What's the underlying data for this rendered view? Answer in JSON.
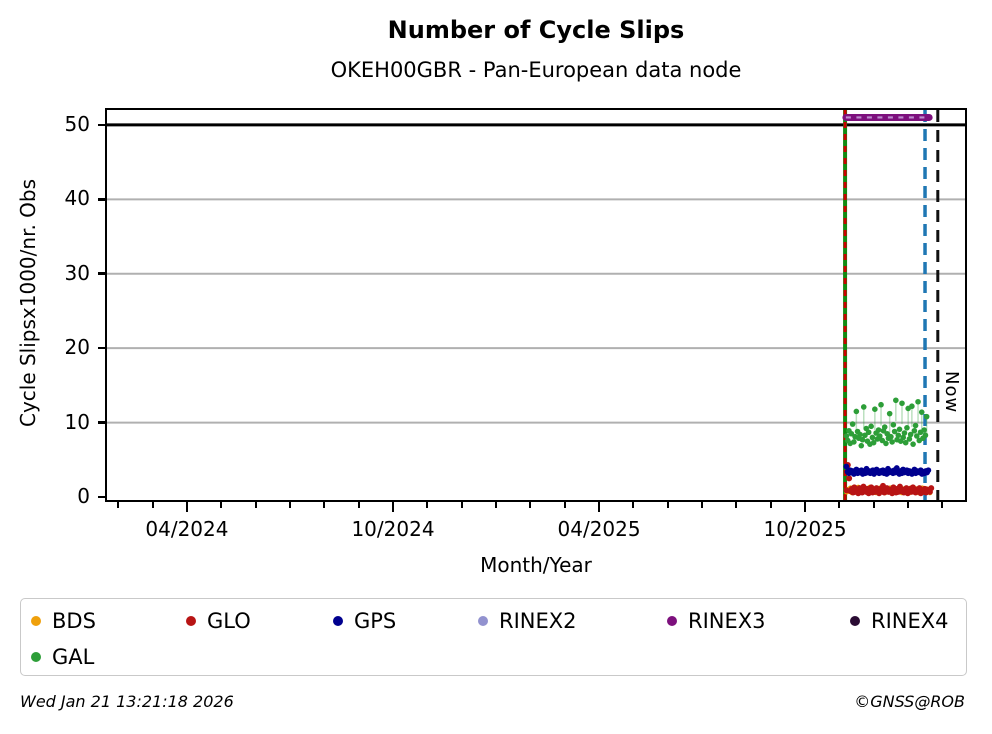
{
  "footer": {
    "timestamp": "Wed Jan 21 13:21:18 2026",
    "credit": "©GNSS@ROB"
  },
  "legend": {
    "items": [
      {
        "label": "BDS",
        "color": "#efa00b"
      },
      {
        "label": "GLO",
        "color": "#b81414"
      },
      {
        "label": "GPS",
        "color": "#00008f"
      },
      {
        "label": "RINEX2",
        "color": "#9292cf"
      },
      {
        "label": "RINEX3",
        "color": "#7d107d"
      },
      {
        "label": "RINEX4",
        "color": "#2a0b33"
      },
      {
        "label": "GAL",
        "color": "#2d9e38"
      }
    ]
  },
  "chart_data": {
    "type": "scatter",
    "title": "Number of Cycle Slips",
    "subtitle": "OKEH00GBR - Pan-European data node",
    "xlabel": "Month/Year",
    "ylabel": "Cycle Slipsx1000/nr. Obs",
    "now_label": "Now",
    "xlim": [
      2024.056,
      2026.138
    ],
    "ylim": [
      -0.4,
      52.0
    ],
    "x_ticks": [
      {
        "v": 2024.25,
        "label": "04/2024"
      },
      {
        "v": 2024.75,
        "label": "10/2024"
      },
      {
        "v": 2025.25,
        "label": "04/2025"
      },
      {
        "v": 2025.75,
        "label": "10/2025"
      }
    ],
    "x_minor_ticks": [
      2024.0833,
      2024.1667,
      2024.3333,
      2024.4167,
      2024.5,
      2024.5833,
      2024.6667,
      2024.8333,
      2024.9167,
      2025.0,
      2025.0833,
      2025.1667,
      2025.3333,
      2025.4167,
      2025.5,
      2025.5833,
      2025.6667,
      2025.8333,
      2025.9167,
      2026.0,
      2026.0833
    ],
    "y_ticks": [
      0,
      10,
      20,
      30,
      40,
      50
    ],
    "gridlines": [
      {
        "v": 10,
        "color": "#b0b0b0",
        "width": 2
      },
      {
        "v": 20,
        "color": "#b0b0b0",
        "width": 2
      },
      {
        "v": 30,
        "color": "#b0b0b0",
        "width": 2
      },
      {
        "v": 40,
        "color": "#b0b0b0",
        "width": 2
      },
      {
        "v": 50,
        "color": "#000000",
        "width": 3
      }
    ],
    "vlines": [
      {
        "name": "data-start-gal",
        "x": 2025.847,
        "color": "#128a12",
        "width": 4,
        "dash": null
      },
      {
        "name": "data-start-glo",
        "x": 2025.847,
        "color": "#cc0000",
        "width": 3,
        "dash": [
          6,
          6
        ]
      },
      {
        "name": "last-obs",
        "x": 2026.041,
        "color": "#1f77b4",
        "width": 3.5,
        "dash": [
          12,
          7
        ]
      },
      {
        "name": "now",
        "x": 2026.072,
        "color": "#111111",
        "width": 3,
        "dash": [
          12,
          8
        ]
      }
    ],
    "segments": [
      {
        "name": "RINEX3",
        "x1": 2025.849,
        "x2": 2026.051,
        "y": 51.0,
        "color": "#7d107d",
        "width": 7,
        "overlay": {
          "color": "#bd8fd0",
          "width": 2.2,
          "dash": [
            5,
            5.5
          ]
        }
      }
    ],
    "series": [
      {
        "name": "BDS",
        "color": "#efa00b",
        "radius": 2.7,
        "x_start": 2025.851,
        "x_end": 2026.053,
        "values": [
          0.7,
          1.0,
          0.8,
          1.2,
          0.6,
          0.9,
          0.7,
          1.1,
          0.8,
          1.3,
          0.6,
          1.0,
          0.9,
          0.7,
          1.2,
          0.8,
          0.6,
          1.0,
          1.3,
          0.7,
          0.9,
          0.8,
          1.1,
          0.6,
          1.0,
          0.8,
          1.2,
          0.7,
          0.9,
          1.1,
          0.6,
          0.8,
          1.0,
          0.7,
          1.2,
          0.9,
          0.6,
          1.1,
          0.8,
          1.0,
          0.7,
          0.9,
          1.2,
          0.6,
          0.8,
          1.1,
          0.7,
          1.0,
          0.9,
          0.6,
          1.2,
          0.8,
          1.0,
          0.7,
          1.1,
          0.9,
          0.6,
          1.0,
          0.8,
          1.2,
          0.7,
          0.9,
          1.1,
          0.8,
          1.0,
          0.6
        ]
      },
      {
        "name": "GLO",
        "color": "#b81414",
        "radius": 3.0,
        "x_start": 2025.8505,
        "x_end": 2026.056,
        "values": [
          0.9,
          4.3,
          2.5,
          0.8,
          1.1,
          0.6,
          1.3,
          0.7,
          1.0,
          0.5,
          1.2,
          0.8,
          0.6,
          1.4,
          0.9,
          0.7,
          1.1,
          0.5,
          0.8,
          1.3,
          0.6,
          1.0,
          0.7,
          1.2,
          0.9,
          0.5,
          1.1,
          0.8,
          1.5,
          0.6,
          0.9,
          1.2,
          0.7,
          1.0,
          0.8,
          0.5,
          1.3,
          0.9,
          0.6,
          1.1,
          0.7,
          1.4,
          0.8,
          1.0,
          0.6,
          0.9,
          1.2,
          0.5,
          0.8,
          1.1,
          0.7,
          1.3,
          0.9,
          0.6,
          1.0,
          0.8,
          1.2,
          0.5,
          0.9,
          0.7,
          1.1,
          0.6,
          1.0,
          0.8,
          0.7,
          1.2
        ]
      },
      {
        "name": "GPS",
        "color": "#00008f",
        "radius": 2.9,
        "x_start": 2025.85,
        "x_end": 2026.049,
        "values": [
          4.1,
          3.4,
          3.2,
          3.6,
          3.3,
          3.5,
          3.1,
          3.4,
          3.7,
          3.2,
          3.5,
          3.3,
          3.6,
          3.1,
          3.4,
          3.2,
          3.8,
          3.3,
          3.5,
          3.2,
          3.4,
          3.6,
          3.1,
          3.3,
          3.7,
          3.4,
          3.2,
          3.5,
          3.3,
          3.6,
          3.2,
          3.4,
          3.1,
          3.8,
          3.3,
          3.5,
          3.4,
          3.2,
          3.6,
          3.3,
          3.9,
          3.4,
          3.1,
          3.5,
          3.2,
          3.7,
          3.3,
          3.4,
          3.6,
          3.2,
          3.5,
          3.3,
          3.1,
          3.4,
          3.7,
          3.2,
          3.5,
          3.4,
          3.3,
          3.6,
          3.1,
          3.4,
          3.2,
          3.5,
          3.3,
          3.6
        ]
      },
      {
        "name": "GAL",
        "color": "#2d9e38",
        "radius": 2.8,
        "x_start": 2025.8504,
        "x_end": 2026.045,
        "stem_threshold": 10.5,
        "stem_drop": 2.8,
        "stem_color": "rgba(45,158,56,0.32)",
        "values": [
          8.2,
          7.6,
          8.9,
          7.2,
          8.5,
          9.8,
          7.4,
          8.1,
          11.5,
          8.8,
          7.9,
          8.4,
          6.9,
          7.7,
          12.1,
          8.3,
          9.2,
          7.5,
          8.7,
          7.1,
          9.5,
          8.0,
          7.3,
          11.8,
          8.6,
          7.8,
          9.0,
          8.2,
          12.4,
          7.6,
          8.9,
          9.4,
          7.2,
          8.5,
          7.9,
          11.2,
          8.1,
          7.4,
          9.7,
          8.8,
          13.0,
          7.7,
          8.3,
          9.1,
          7.5,
          12.6,
          8.0,
          8.6,
          7.3,
          9.3,
          11.9,
          7.8,
          8.4,
          12.2,
          7.1,
          8.9,
          9.6,
          8.2,
          12.8,
          7.6,
          8.7,
          11.4,
          7.9,
          9.0,
          8.3,
          10.8
        ]
      },
      {
        "name": "RINEX2",
        "color": "#9292cf",
        "radius": 2.8,
        "x_start": 0,
        "x_end": 0,
        "values": []
      },
      {
        "name": "RINEX4",
        "color": "#2a0b33",
        "radius": 2.8,
        "x_start": 0,
        "x_end": 0,
        "values": []
      }
    ]
  }
}
